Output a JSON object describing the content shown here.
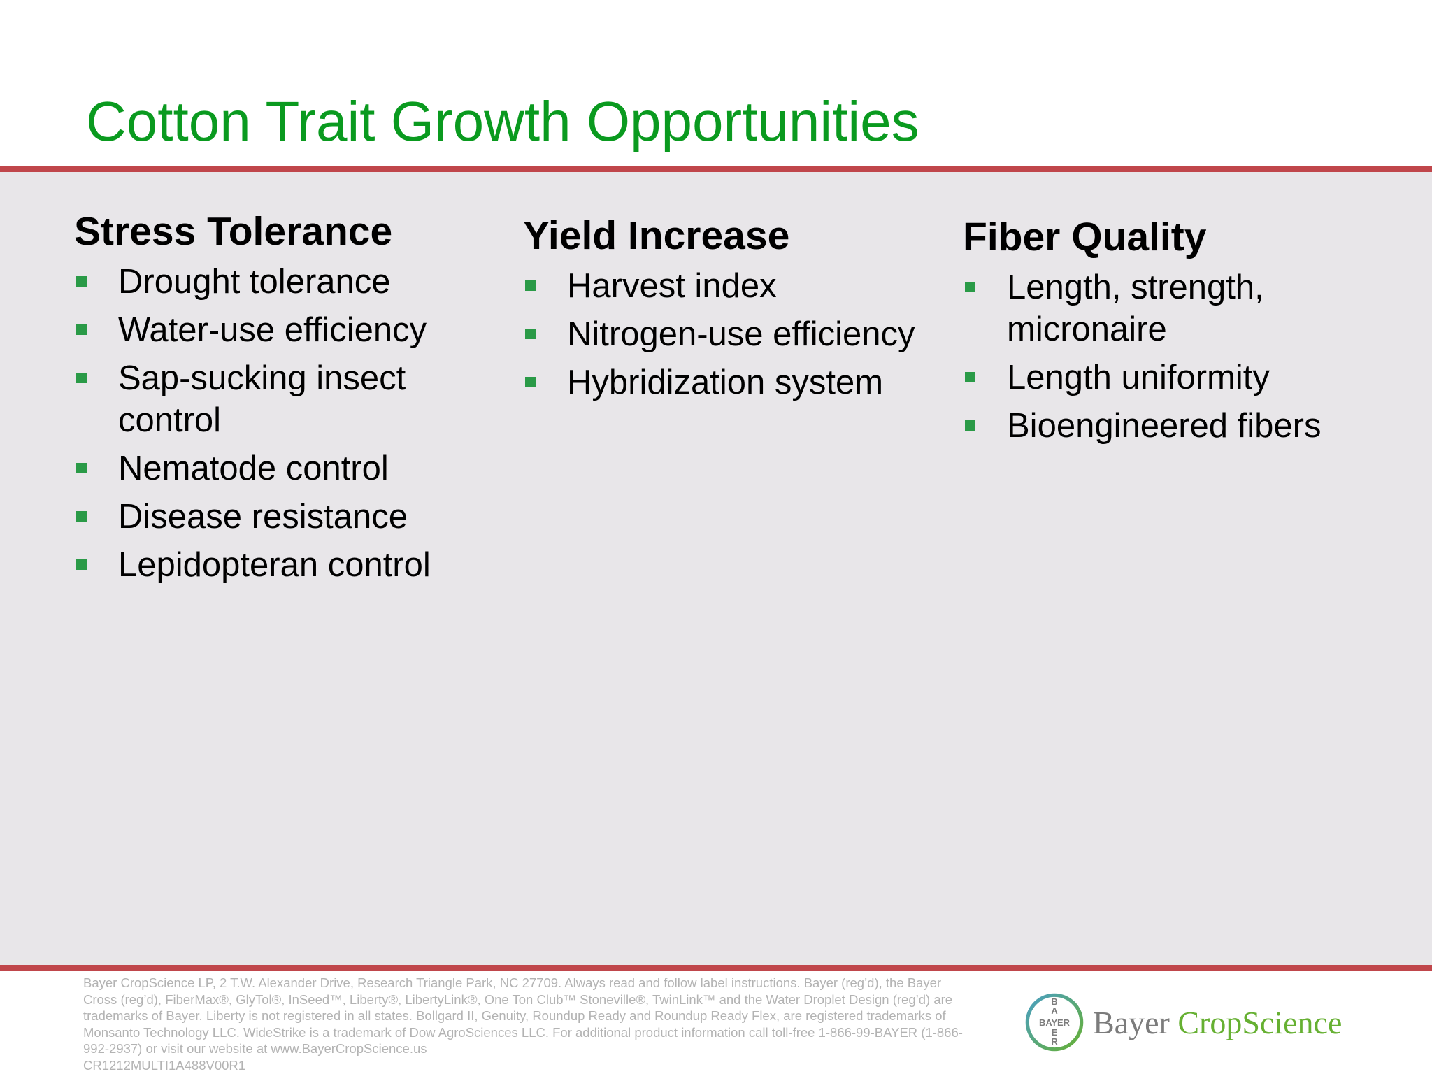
{
  "colors": {
    "title_green": "#0a9a1f",
    "rule_red": "#c0464b",
    "bullet_green": "#2a9a47",
    "bayer_gray": "#7c7c7c",
    "cropscience_green": "#66b032",
    "logo_blue": "#4a9fc4"
  },
  "slide": {
    "title": "Cotton Trait Growth Opportunities"
  },
  "columns": [
    {
      "heading": "Stress Tolerance",
      "items": [
        "Drought tolerance",
        "Water-use efficiency",
        "Sap-sucking insect control",
        "Nematode control",
        "Disease resistance",
        "Lepidopteran control"
      ]
    },
    {
      "heading": "Yield Increase",
      "items": [
        "Harvest index",
        "Nitrogen-use efficiency",
        "Hybridization system"
      ]
    },
    {
      "heading": "Fiber Quality",
      "items": [
        "Length, strength, micronaire",
        "Length uniformity",
        "Bioengineered fibers"
      ]
    }
  ],
  "footer": {
    "disclaimer": "Bayer CropScience LP, 2 T.W. Alexander Drive, Research Triangle Park, NC 27709. Always read and follow label instructions. Bayer (reg’d), the Bayer Cross (reg’d), FiberMax®, GlyTol®, InSeed™, Liberty®, LibertyLink®, One Ton Club™ Stoneville®, TwinLink™ and the Water Droplet Design (reg’d) are trademarks of Bayer. Liberty is not registered in all states. Bollgard II, Genuity, Roundup Ready and Roundup Ready Flex, are registered trademarks of Monsanto Technology LLC. WideStrike is a trademark of Dow AgroSciences LLC. For additional product information call toll-free 1-866-99-BAYER (1-866-992-2937) or visit our website at www.BayerCropScience.us",
    "code": "CR1212MULTI1A488V00R1"
  },
  "logo": {
    "cross_text": "BAYER",
    "word_bayer": "Bayer",
    "word_cropscience": "CropScience"
  }
}
